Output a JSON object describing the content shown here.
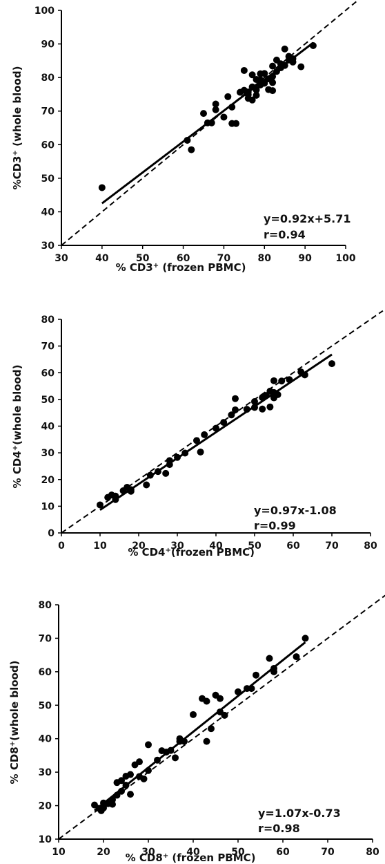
{
  "colors": {
    "points": "#000000",
    "fit_line": "#000000",
    "identity_line": "#000000",
    "background": "#ffffff"
  },
  "chart_data": [
    {
      "type": "scatter",
      "id": "cd3",
      "xlabel": {
        "pre": "% CD3",
        "sup": "+",
        "post": " (frozen PBMC)"
      },
      "ylabel": {
        "pre": "%CD3",
        "sup": "+",
        "post": " (whole blood)"
      },
      "xlim": [
        30,
        100
      ],
      "ylim": [
        30,
        100
      ],
      "xticks": [
        "30",
        "40",
        "50",
        "60",
        "70",
        "80",
        "90",
        "100"
      ],
      "yticks": [
        "30",
        "40",
        "50",
        "60",
        "70",
        "80",
        "90",
        "100"
      ],
      "grid": false,
      "equation": "y=0.92x+5.71",
      "r_text": "r=0.94",
      "fit": {
        "slope": 0.92,
        "intercept": 5.71,
        "x_range": [
          40,
          92
        ]
      },
      "identity_line": true,
      "points": [
        [
          40,
          47.2
        ],
        [
          61,
          61.3
        ],
        [
          62,
          58.5
        ],
        [
          65,
          69.3
        ],
        [
          66,
          66.5
        ],
        [
          67,
          66.5
        ],
        [
          68,
          70.4
        ],
        [
          68,
          72.1
        ],
        [
          70,
          68.2
        ],
        [
          71,
          74.3
        ],
        [
          72,
          71.2
        ],
        [
          72,
          66.3
        ],
        [
          73,
          66.3
        ],
        [
          74,
          75.6
        ],
        [
          75,
          82.1
        ],
        [
          75,
          76.2
        ],
        [
          76,
          73.8
        ],
        [
          76,
          74.9
        ],
        [
          76,
          75.7
        ],
        [
          77,
          77.2
        ],
        [
          77,
          73.3
        ],
        [
          77,
          80.8
        ],
        [
          78,
          79.4
        ],
        [
          78,
          76.3
        ],
        [
          78,
          74.7
        ],
        [
          79,
          81.1
        ],
        [
          79,
          79.3
        ],
        [
          79,
          77.8
        ],
        [
          80,
          81.2
        ],
        [
          80,
          78.3
        ],
        [
          81,
          76.4
        ],
        [
          81,
          79.6
        ],
        [
          82,
          76.1
        ],
        [
          82,
          78.5
        ],
        [
          82,
          80.3
        ],
        [
          82,
          83.4
        ],
        [
          83,
          81.8
        ],
        [
          83,
          85.2
        ],
        [
          84,
          82.9
        ],
        [
          84,
          84.1
        ],
        [
          85,
          83.6
        ],
        [
          85,
          88.5
        ],
        [
          86,
          85.2
        ],
        [
          86,
          86.3
        ],
        [
          87,
          84.6
        ],
        [
          87,
          85.6
        ],
        [
          89,
          83.2
        ],
        [
          92,
          89.5
        ]
      ]
    },
    {
      "type": "scatter",
      "id": "cd4",
      "xlabel": {
        "pre": "% CD4",
        "sup": "+",
        "post": "(frozen PBMC)"
      },
      "ylabel": {
        "pre": "% CD4",
        "sup": "+",
        "post": "(whole blood)"
      },
      "xlim": [
        0,
        80
      ],
      "ylim": [
        0,
        80
      ],
      "xticks": [
        "0",
        "10",
        "20",
        "30",
        "40",
        "50",
        "60",
        "70",
        "80"
      ],
      "yticks": [
        "0",
        "10",
        "20",
        "30",
        "40",
        "50",
        "60",
        "70",
        "80"
      ],
      "grid": false,
      "equation": "y=0.97x-1.08",
      "r_text": "r=0.99",
      "fit": {
        "slope": 0.97,
        "intercept": -1.08,
        "x_range": [
          10,
          70
        ]
      },
      "identity_line": true,
      "points": [
        [
          10,
          10.5
        ],
        [
          12,
          13.3
        ],
        [
          13,
          14.2
        ],
        [
          14,
          12.5
        ],
        [
          14,
          13.8
        ],
        [
          16,
          15.8
        ],
        [
          17,
          17.1
        ],
        [
          18,
          16.2
        ],
        [
          18,
          15.6
        ],
        [
          22,
          18.0
        ],
        [
          23,
          21.6
        ],
        [
          25,
          23.0
        ],
        [
          27,
          22.3
        ],
        [
          28,
          25.6
        ],
        [
          28,
          27.1
        ],
        [
          30,
          28.3
        ],
        [
          32,
          29.9
        ],
        [
          35,
          34.6
        ],
        [
          36,
          30.3
        ],
        [
          37,
          36.8
        ],
        [
          40,
          39.2
        ],
        [
          42,
          41.4
        ],
        [
          44,
          44.2
        ],
        [
          45,
          46.1
        ],
        [
          45,
          50.3
        ],
        [
          48,
          46.3
        ],
        [
          50,
          47.0
        ],
        [
          50,
          49.2
        ],
        [
          52,
          50.7
        ],
        [
          52,
          46.4
        ],
        [
          53,
          51.5
        ],
        [
          54,
          53.1
        ],
        [
          54,
          47.2
        ],
        [
          55,
          52.6
        ],
        [
          55,
          57.0
        ],
        [
          55,
          50.6
        ],
        [
          56,
          51.8
        ],
        [
          57,
          56.9
        ],
        [
          59,
          57.4
        ],
        [
          62,
          60.3
        ],
        [
          63,
          59.2
        ],
        [
          70,
          63.4
        ]
      ]
    },
    {
      "type": "scatter",
      "id": "cd8",
      "xlabel": {
        "pre": "% CD8",
        "sup": "+",
        "post": " (frozen PBMC)"
      },
      "ylabel": {
        "pre": "% CD8",
        "sup": "+",
        "post": "(whole blood)"
      },
      "xlim": [
        10,
        80
      ],
      "ylim": [
        10,
        80
      ],
      "xticks": [
        "10",
        "20",
        "30",
        "40",
        "50",
        "60",
        "70",
        "80"
      ],
      "yticks": [
        "10",
        "20",
        "30",
        "40",
        "50",
        "60",
        "70",
        "80"
      ],
      "grid": false,
      "equation": "y=1.07x-0.73",
      "r_text": "r=0.98",
      "fit": {
        "slope": 1.07,
        "intercept": -0.73,
        "x_range": [
          18,
          65
        ]
      },
      "identity_line": true,
      "points": [
        [
          18,
          20.2
        ],
        [
          19,
          19.2
        ],
        [
          19.5,
          18.5
        ],
        [
          20,
          20.8
        ],
        [
          20,
          19.3
        ],
        [
          21,
          20.6
        ],
        [
          22,
          21.8
        ],
        [
          22,
          20.4
        ],
        [
          23,
          23.1
        ],
        [
          23,
          26.9
        ],
        [
          24,
          27.5
        ],
        [
          24,
          24.3
        ],
        [
          25,
          28.8
        ],
        [
          25,
          26.1
        ],
        [
          26,
          23.4
        ],
        [
          26,
          29.3
        ],
        [
          27,
          32.2
        ],
        [
          28,
          28.7
        ],
        [
          28,
          33.1
        ],
        [
          29,
          28.0
        ],
        [
          30,
          38.2
        ],
        [
          30,
          30.5
        ],
        [
          32,
          33.6
        ],
        [
          33,
          36.4
        ],
        [
          34,
          36.0
        ],
        [
          35,
          36.5
        ],
        [
          36,
          34.3
        ],
        [
          37,
          39.2
        ],
        [
          37,
          40.0
        ],
        [
          38,
          39.2
        ],
        [
          40,
          47.2
        ],
        [
          42,
          52.0
        ],
        [
          43,
          51.2
        ],
        [
          43,
          39.2
        ],
        [
          44,
          43.0
        ],
        [
          45,
          53.0
        ],
        [
          46,
          52.0
        ],
        [
          46,
          48.0
        ],
        [
          47,
          47.0
        ],
        [
          50,
          54.0
        ],
        [
          52,
          55.0
        ],
        [
          53,
          55.0
        ],
        [
          54,
          59.0
        ],
        [
          57,
          64.0
        ],
        [
          58,
          61.0
        ],
        [
          58,
          60.0
        ],
        [
          63,
          64.5
        ],
        [
          65,
          70.0
        ]
      ]
    }
  ]
}
